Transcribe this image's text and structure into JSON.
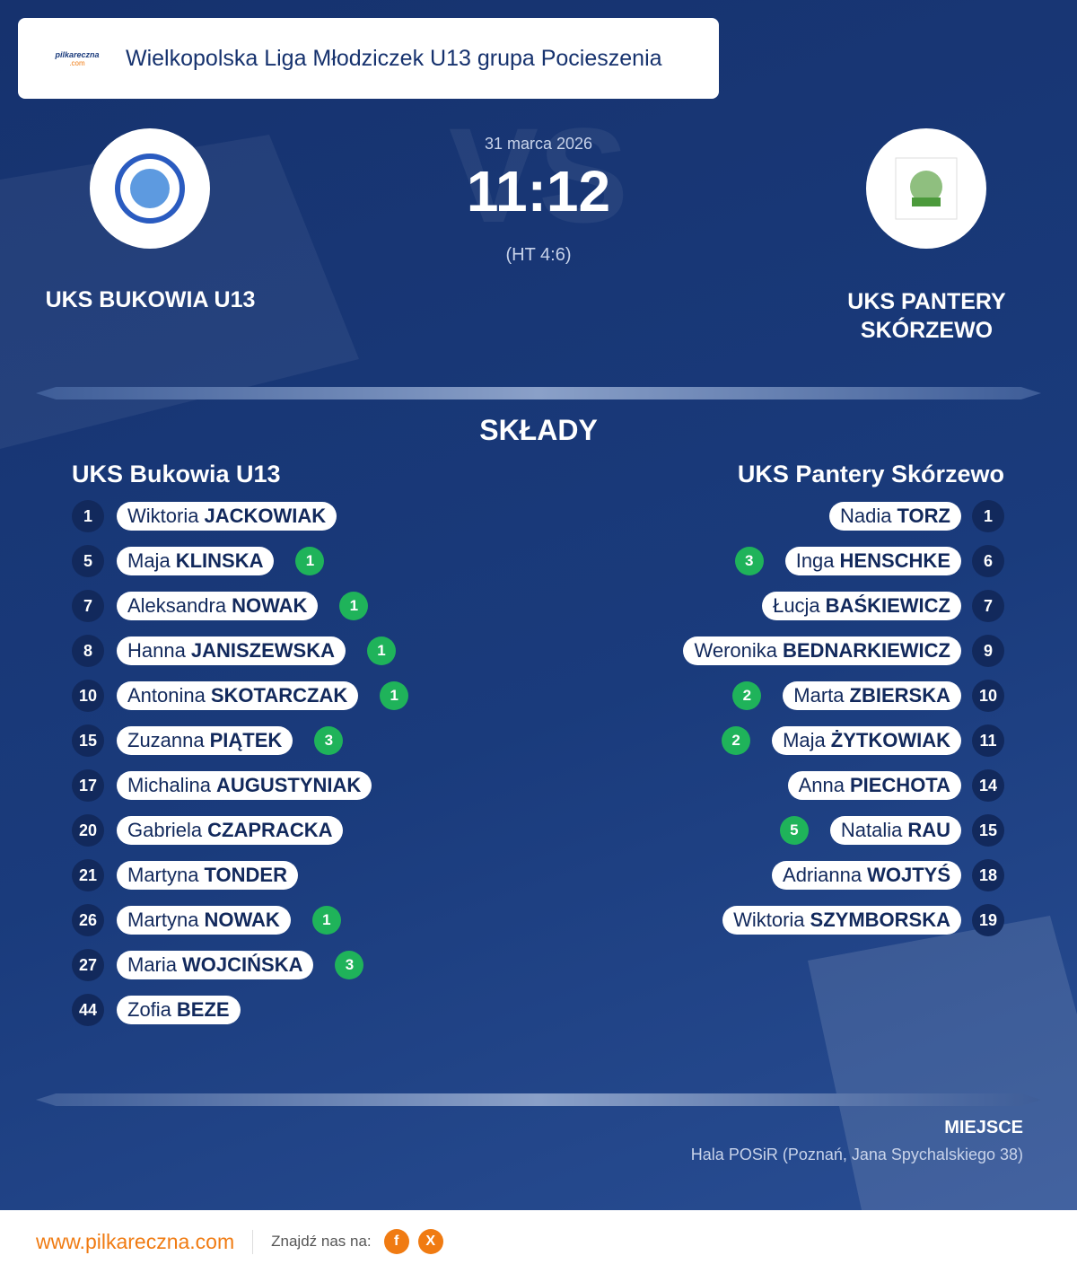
{
  "header": {
    "league": "Wielkopolska Liga Młodziczek U13 grupa Pocieszenia",
    "logo_text": "pilkareczna",
    "logo_sub": ".com"
  },
  "match": {
    "date": "31 marca 2026",
    "score": "11:12",
    "halftime": "(HT 4:6)",
    "watermark": "VS"
  },
  "home": {
    "name": "UKS BUKOWIA U13"
  },
  "away": {
    "name": "UKS PANTERY SKÓRZEWO"
  },
  "lineups": {
    "title": "SKŁADY",
    "home": {
      "team": "UKS Bukowia U13",
      "players": [
        {
          "number": "1",
          "first": "Wiktoria",
          "last": "JACKOWIAK"
        },
        {
          "number": "5",
          "first": "Maja",
          "last": "KLINSKA",
          "goals": "1"
        },
        {
          "number": "7",
          "first": "Aleksandra",
          "last": "NOWAK",
          "goals": "1"
        },
        {
          "number": "8",
          "first": "Hanna",
          "last": "JANISZEWSKA",
          "goals": "1"
        },
        {
          "number": "10",
          "first": "Antonina",
          "last": "SKOTARCZAK",
          "goals": "1"
        },
        {
          "number": "15",
          "first": "Zuzanna",
          "last": "PIĄTEK",
          "goals": "3"
        },
        {
          "number": "17",
          "first": "Michalina",
          "last": "AUGUSTYNIAK"
        },
        {
          "number": "20",
          "first": "Gabriela",
          "last": "CZAPRACKA"
        },
        {
          "number": "21",
          "first": "Martyna",
          "last": "TONDER"
        },
        {
          "number": "26",
          "first": "Martyna",
          "last": "NOWAK",
          "goals": "1"
        },
        {
          "number": "27",
          "first": "Maria",
          "last": "WOJCIŃSKA",
          "goals": "3"
        },
        {
          "number": "44",
          "first": "Zofia",
          "last": "BEZE"
        }
      ]
    },
    "away": {
      "team": "UKS Pantery Skórzewo",
      "players": [
        {
          "number": "1",
          "first": "Nadia",
          "last": "TORZ"
        },
        {
          "number": "6",
          "first": "Inga",
          "last": "HENSCHKE",
          "goals": "3"
        },
        {
          "number": "7",
          "first": "Łucja",
          "last": "BAŚKIEWICZ"
        },
        {
          "number": "9",
          "first": "Weronika",
          "last": "BEDNARKIEWICZ"
        },
        {
          "number": "10",
          "first": "Marta",
          "last": "ZBIERSKA",
          "goals": "2"
        },
        {
          "number": "11",
          "first": "Maja",
          "last": "ŻYTKOWIAK",
          "goals": "2"
        },
        {
          "number": "14",
          "first": "Anna",
          "last": "PIECHOTA"
        },
        {
          "number": "15",
          "first": "Natalia",
          "last": "RAU",
          "goals": "5"
        },
        {
          "number": "18",
          "first": "Adrianna",
          "last": "WOJTYŚ"
        },
        {
          "number": "19",
          "first": "Wiktoria",
          "last": "SZYMBORSKA"
        }
      ]
    }
  },
  "venue": {
    "label": "MIEJSCE",
    "text": "Hala POSiR (Poznań, Jana Spychalskiego 38)"
  },
  "footer": {
    "url": "www.pilkareczna.com",
    "follow": "Znajdź nas na:",
    "icons": [
      "f",
      "X"
    ]
  }
}
